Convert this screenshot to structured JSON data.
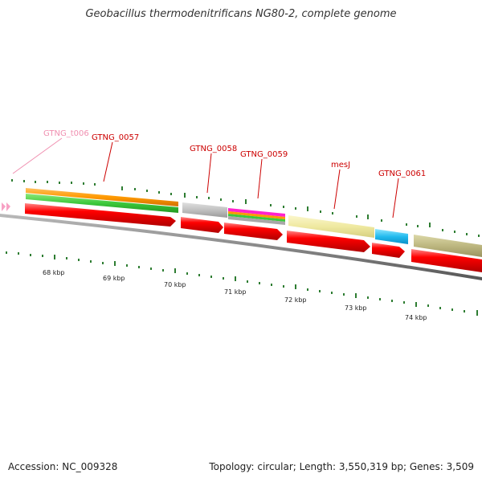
{
  "title": "Geobacillus thermodenitrificans NG80-2, complete genome",
  "footer": {
    "accession": "Accession: NC_009328",
    "summary": "Topology: circular; Length: 3,550,319 bp; Genes: 3,509"
  },
  "colors": {
    "cds": "#ff0000",
    "tick": "#2e7d32",
    "backbone": "#888888",
    "trna_label": "#f08fb0",
    "gene_label": "#cc0000"
  },
  "scale_labels": [
    "68 kbp",
    "69 kbp",
    "70 kbp",
    "71 kbp",
    "72 kbp",
    "73 kbp",
    "74 kbp"
  ],
  "gene_labels": [
    "GTNG_t006",
    "GTNG_0057",
    "GTNG_0058",
    "GTNG_0059",
    "mesJ",
    "GTNG_0061"
  ]
}
